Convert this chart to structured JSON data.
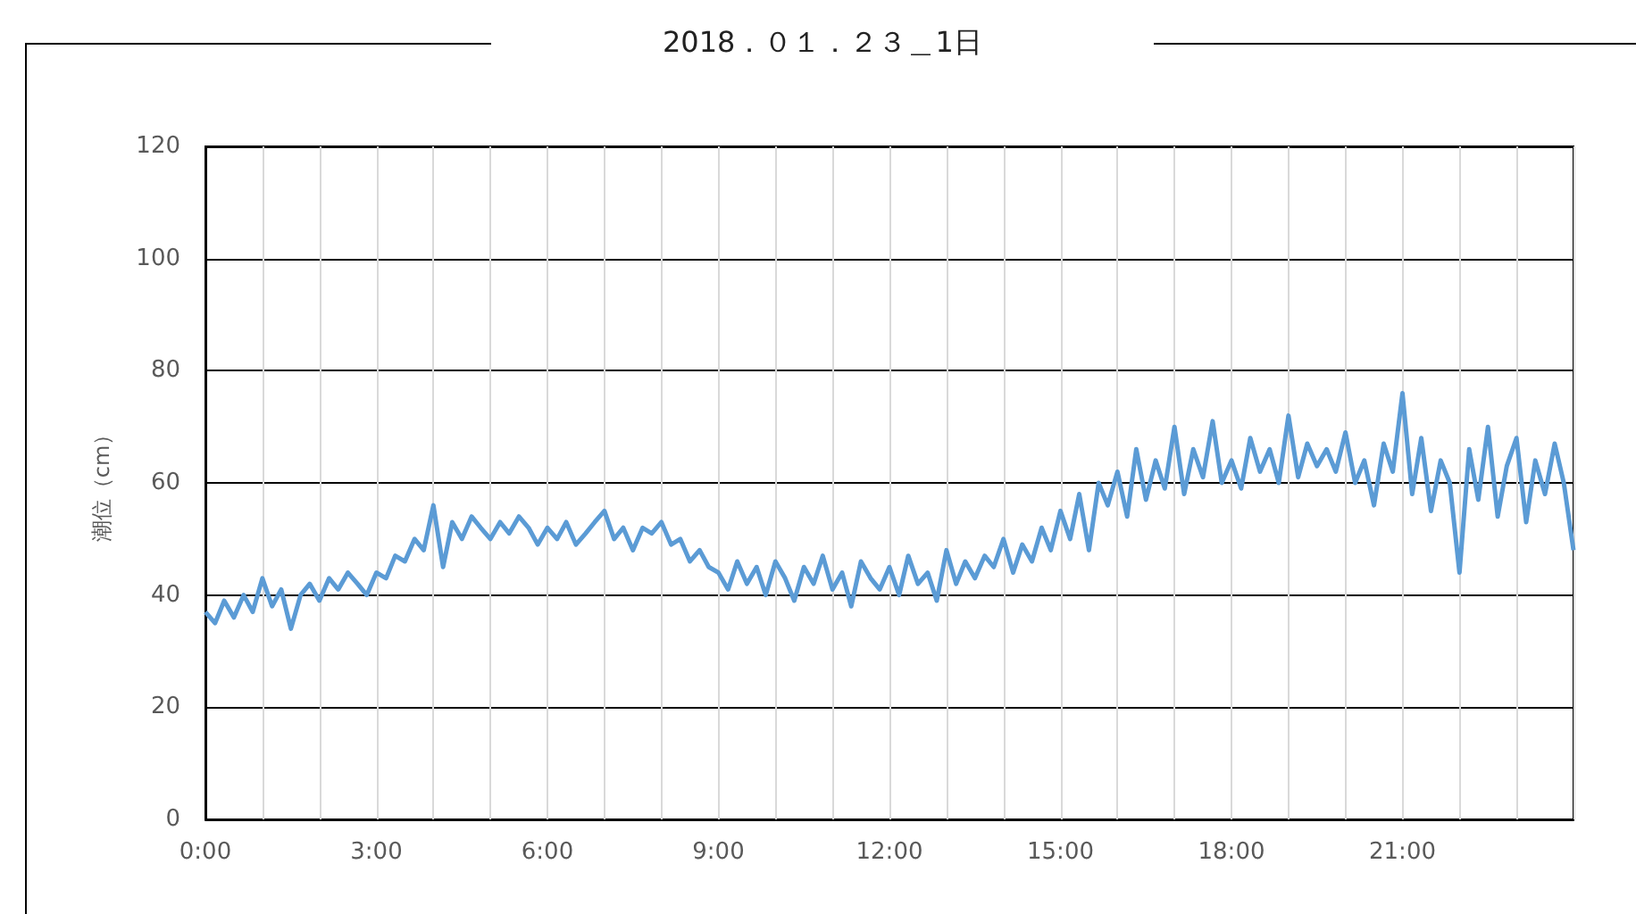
{
  "chart_data": {
    "type": "line",
    "title": "2018．０１．２３＿1日",
    "ylabel": "潮位（cm）",
    "x": [
      0,
      0.17,
      0.33,
      0.5,
      0.67,
      0.83,
      1,
      1.17,
      1.33,
      1.5,
      1.67,
      1.83,
      2,
      2.17,
      2.33,
      2.5,
      2.67,
      2.83,
      3,
      3.17,
      3.33,
      3.5,
      3.67,
      3.83,
      4,
      4.17,
      4.33,
      4.5,
      4.67,
      4.83,
      5,
      5.17,
      5.33,
      5.5,
      5.67,
      5.83,
      6,
      6.17,
      6.33,
      6.5,
      6.67,
      6.83,
      7,
      7.17,
      7.33,
      7.5,
      7.67,
      7.83,
      8,
      8.17,
      8.33,
      8.5,
      8.67,
      8.83,
      9,
      9.17,
      9.33,
      9.5,
      9.67,
      9.83,
      10,
      10.17,
      10.33,
      10.5,
      10.67,
      10.83,
      11,
      11.17,
      11.33,
      11.5,
      11.67,
      11.83,
      12,
      12.17,
      12.33,
      12.5,
      12.67,
      12.83,
      13,
      13.17,
      13.33,
      13.5,
      13.67,
      13.83,
      14,
      14.17,
      14.33,
      14.5,
      14.67,
      14.83,
      15,
      15.17,
      15.33,
      15.5,
      15.67,
      15.83,
      16,
      16.17,
      16.33,
      16.5,
      16.67,
      16.83,
      17,
      17.17,
      17.33,
      17.5,
      17.67,
      17.83,
      18,
      18.17,
      18.33,
      18.5,
      18.67,
      18.83,
      19,
      19.17,
      19.33,
      19.5,
      19.67,
      19.83,
      20,
      20.17,
      20.33,
      20.5,
      20.67,
      20.83,
      21,
      21.17,
      21.33,
      21.5,
      21.67,
      21.83,
      22,
      22.17,
      22.33,
      22.5,
      22.67,
      22.83,
      23,
      23.17,
      23.33,
      23.5,
      23.67,
      23.83,
      24
    ],
    "series": [
      {
        "color": "#5b9bd5",
        "values": [
          37,
          35,
          39,
          36,
          40,
          37,
          43,
          38,
          41,
          34,
          40,
          42,
          39,
          43,
          41,
          44,
          42,
          40,
          44,
          43,
          47,
          46,
          50,
          48,
          56,
          45,
          53,
          50,
          54,
          52,
          50,
          53,
          51,
          54,
          52,
          49,
          52,
          50,
          53,
          49,
          51,
          53,
          55,
          50,
          52,
          48,
          52,
          51,
          53,
          49,
          50,
          46,
          48,
          45,
          44,
          41,
          46,
          42,
          45,
          40,
          46,
          43,
          39,
          45,
          42,
          47,
          41,
          44,
          38,
          46,
          43,
          41,
          45,
          40,
          47,
          42,
          44,
          39,
          48,
          42,
          46,
          43,
          47,
          45,
          50,
          44,
          49,
          46,
          52,
          48,
          55,
          50,
          58,
          48,
          60,
          56,
          62,
          54,
          66,
          57,
          64,
          59,
          70,
          58,
          66,
          61,
          71,
          60,
          64,
          59,
          68,
          62,
          66,
          60,
          72,
          61,
          67,
          63,
          66,
          62,
          69,
          60,
          64,
          56,
          67,
          62,
          76,
          58,
          68,
          55,
          64,
          60,
          44,
          66,
          57,
          70,
          54,
          63,
          68,
          53,
          64,
          58,
          67,
          60,
          48
        ]
      }
    ],
    "xlim": [
      0,
      24
    ],
    "xticks": [
      {
        "value": 0,
        "label": "0:00"
      },
      {
        "value": 1,
        "label": null
      },
      {
        "value": 2,
        "label": null
      },
      {
        "value": 3,
        "label": "3:00"
      },
      {
        "value": 4,
        "label": null
      },
      {
        "value": 5,
        "label": null
      },
      {
        "value": 6,
        "label": "6:00"
      },
      {
        "value": 7,
        "label": null
      },
      {
        "value": 8,
        "label": null
      },
      {
        "value": 9,
        "label": "9:00"
      },
      {
        "value": 10,
        "label": null
      },
      {
        "value": 11,
        "label": null
      },
      {
        "value": 12,
        "label": "12:00"
      },
      {
        "value": 13,
        "label": null
      },
      {
        "value": 14,
        "label": null
      },
      {
        "value": 15,
        "label": "15:00"
      },
      {
        "value": 16,
        "label": null
      },
      {
        "value": 17,
        "label": null
      },
      {
        "value": 18,
        "label": "18:00"
      },
      {
        "value": 19,
        "label": null
      },
      {
        "value": 20,
        "label": null
      },
      {
        "value": 21,
        "label": "21:00"
      },
      {
        "value": 22,
        "label": null
      },
      {
        "value": 23,
        "label": null
      },
      {
        "value": 24,
        "label": null
      }
    ],
    "ylim": [
      0,
      120
    ],
    "yticks": [
      0,
      20,
      40,
      60,
      80,
      100,
      120
    ],
    "grid": true
  }
}
